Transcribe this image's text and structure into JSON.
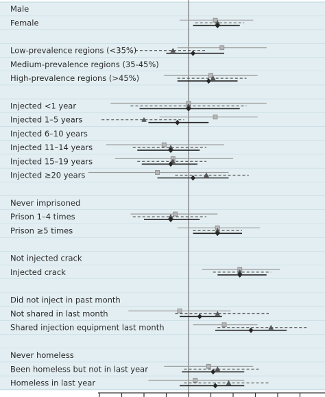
{
  "colors": {
    "band": "#e3eef2",
    "band_line": "#b9d5de",
    "grey_series": "#9a9a9a",
    "dashed_series": "#555555",
    "dark_series": "#262626",
    "reference_line": "#777777",
    "axis": "#333333",
    "text": "#2b2b2b"
  },
  "chart_data": {
    "type": "forest",
    "x_axis": {
      "ticks": [
        -4,
        -3,
        -2,
        -1,
        0,
        1,
        2,
        3,
        4,
        5
      ],
      "reference_value": 0,
      "tick_labels_visible": false
    },
    "marker_styles": [
      {
        "id": "a",
        "marker": "square",
        "color": "#9a9a9a",
        "line": "solid"
      },
      {
        "id": "b",
        "marker": "triangle",
        "color": "#555555",
        "line": "dashed"
      },
      {
        "id": "c",
        "marker": "diamond",
        "color": "#262626",
        "line": "solid"
      }
    ],
    "rows": [
      {
        "label": "Male",
        "series": []
      },
      {
        "label": "Female",
        "series": [
          {
            "id": "a",
            "est": 1.2,
            "lo": -0.4,
            "hi": 2.9
          },
          {
            "id": "b",
            "est": 1.3,
            "lo": 0.3,
            "hi": 2.5
          },
          {
            "id": "c",
            "est": 1.3,
            "lo": 0.2,
            "hi": 2.3
          }
        ]
      },
      {
        "label": "",
        "series": []
      },
      {
        "label": "Low-prevalence regions (<35%)",
        "series": [
          {
            "id": "a",
            "est": 1.5,
            "lo": -0.5,
            "hi": 3.5
          },
          {
            "id": "b",
            "est": -0.7,
            "lo": -2.4,
            "hi": 0.8
          },
          {
            "id": "c",
            "est": 0.2,
            "lo": -1.0,
            "hi": 1.6
          }
        ]
      },
      {
        "label": "Medium-prevalence regions (35-45%)",
        "series": []
      },
      {
        "label": "High-prevalence regions (>45%)",
        "series": [
          {
            "id": "a",
            "est": 1.0,
            "lo": -1.1,
            "hi": 3.1
          },
          {
            "id": "b",
            "est": 1.1,
            "lo": -0.5,
            "hi": 2.6
          },
          {
            "id": "c",
            "est": 0.9,
            "lo": -0.5,
            "hi": 2.2
          }
        ]
      },
      {
        "label": "",
        "series": []
      },
      {
        "label": "Injected  <1 year",
        "series": [
          {
            "id": "a",
            "est": 0.0,
            "lo": -3.5,
            "hi": 3.5
          },
          {
            "id": "b",
            "est": 0.0,
            "lo": -2.6,
            "hi": 2.6
          },
          {
            "id": "c",
            "est": 0.0,
            "lo": -2.2,
            "hi": 2.3
          }
        ]
      },
      {
        "label": "Injected  1–5 years",
        "series": [
          {
            "id": "a",
            "est": 1.2,
            "lo": -1.3,
            "hi": 3.1
          },
          {
            "id": "b",
            "est": -2.0,
            "lo": -3.9,
            "hi": -0.2
          },
          {
            "id": "c",
            "est": -0.5,
            "lo": -1.8,
            "hi": 0.9
          }
        ]
      },
      {
        "label": "Injected  6–10 years",
        "series": []
      },
      {
        "label": "Injected  11–14 years",
        "series": [
          {
            "id": "a",
            "est": -1.1,
            "lo": -3.7,
            "hi": 1.6
          },
          {
            "id": "b",
            "est": -0.8,
            "lo": -2.5,
            "hi": 0.8
          },
          {
            "id": "c",
            "est": -0.8,
            "lo": -2.3,
            "hi": 0.5
          }
        ]
      },
      {
        "label": "Injected  15–19 years",
        "series": [
          {
            "id": "a",
            "est": -0.7,
            "lo": -3.3,
            "hi": 2.0
          },
          {
            "id": "b",
            "est": -0.7,
            "lo": -2.3,
            "hi": 0.8
          },
          {
            "id": "c",
            "est": -0.8,
            "lo": -2.1,
            "hi": 0.4
          }
        ]
      },
      {
        "label": "Injected  ≥20 years",
        "series": [
          {
            "id": "a",
            "est": -1.4,
            "lo": -4.5,
            "hi": 1.8
          },
          {
            "id": "b",
            "est": 0.8,
            "lo": -0.6,
            "hi": 2.7
          },
          {
            "id": "c",
            "est": 0.2,
            "lo": -1.4,
            "hi": 1.8
          }
        ]
      },
      {
        "label": "",
        "series": []
      },
      {
        "label": "Never imprisoned",
        "series": []
      },
      {
        "label": "Prison 1–4 times",
        "series": [
          {
            "id": "a",
            "est": -0.6,
            "lo": -2.6,
            "hi": 1.3
          },
          {
            "id": "b",
            "est": -0.8,
            "lo": -2.5,
            "hi": 0.8
          },
          {
            "id": "c",
            "est": -0.8,
            "lo": -2.0,
            "hi": 0.5
          }
        ]
      },
      {
        "label": "Prison ≥5 times",
        "series": [
          {
            "id": "a",
            "est": 1.3,
            "lo": -0.5,
            "hi": 3.2
          },
          {
            "id": "b",
            "est": 1.3,
            "lo": 0.2,
            "hi": 2.4
          },
          {
            "id": "c",
            "est": 1.3,
            "lo": 0.2,
            "hi": 2.4
          }
        ]
      },
      {
        "label": "",
        "series": []
      },
      {
        "label": "Not injected crack",
        "series": []
      },
      {
        "label": "Injected crack",
        "series": [
          {
            "id": "a",
            "est": 2.3,
            "lo": 0.6,
            "hi": 4.1
          },
          {
            "id": "b",
            "est": 2.3,
            "lo": 1.1,
            "hi": 3.7
          },
          {
            "id": "c",
            "est": 2.3,
            "lo": 1.3,
            "hi": 3.5
          }
        ]
      },
      {
        "label": "",
        "series": []
      },
      {
        "label": "Did not inject in past month",
        "series": []
      },
      {
        "label": "Not shared in last month",
        "series": [
          {
            "id": "a",
            "est": -0.4,
            "lo": -2.7,
            "hi": 1.9
          },
          {
            "id": "b",
            "est": 1.3,
            "lo": -0.6,
            "hi": 3.6
          },
          {
            "id": "c",
            "est": 0.5,
            "lo": -0.4,
            "hi": 1.5
          }
        ]
      },
      {
        "label": "Shared injection equipment last month",
        "series": [
          {
            "id": "a",
            "est": 1.6,
            "lo": 0.2,
            "hi": 3.1
          },
          {
            "id": "b",
            "est": 3.7,
            "lo": 1.3,
            "hi": 5.3
          },
          {
            "id": "c",
            "est": 2.8,
            "lo": 1.2,
            "hi": 4.4
          }
        ]
      },
      {
        "label": "",
        "series": []
      },
      {
        "label": "Never homeless",
        "series": []
      },
      {
        "label": "Been homeless but not in last year",
        "series": [
          {
            "id": "a",
            "est": 0.9,
            "lo": -1.1,
            "hi": 2.9
          },
          {
            "id": "b",
            "est": 1.3,
            "lo": -0.2,
            "hi": 3.2
          },
          {
            "id": "c",
            "est": 1.1,
            "lo": -0.3,
            "hi": 2.5
          }
        ]
      },
      {
        "label": "Homeless in last year",
        "series": [
          {
            "id": "a",
            "est": 0.3,
            "lo": -1.8,
            "hi": 2.5
          },
          {
            "id": "b",
            "est": 1.8,
            "lo": -0.2,
            "hi": 3.6
          },
          {
            "id": "c",
            "est": 1.2,
            "lo": -0.4,
            "hi": 2.5
          }
        ]
      }
    ]
  }
}
